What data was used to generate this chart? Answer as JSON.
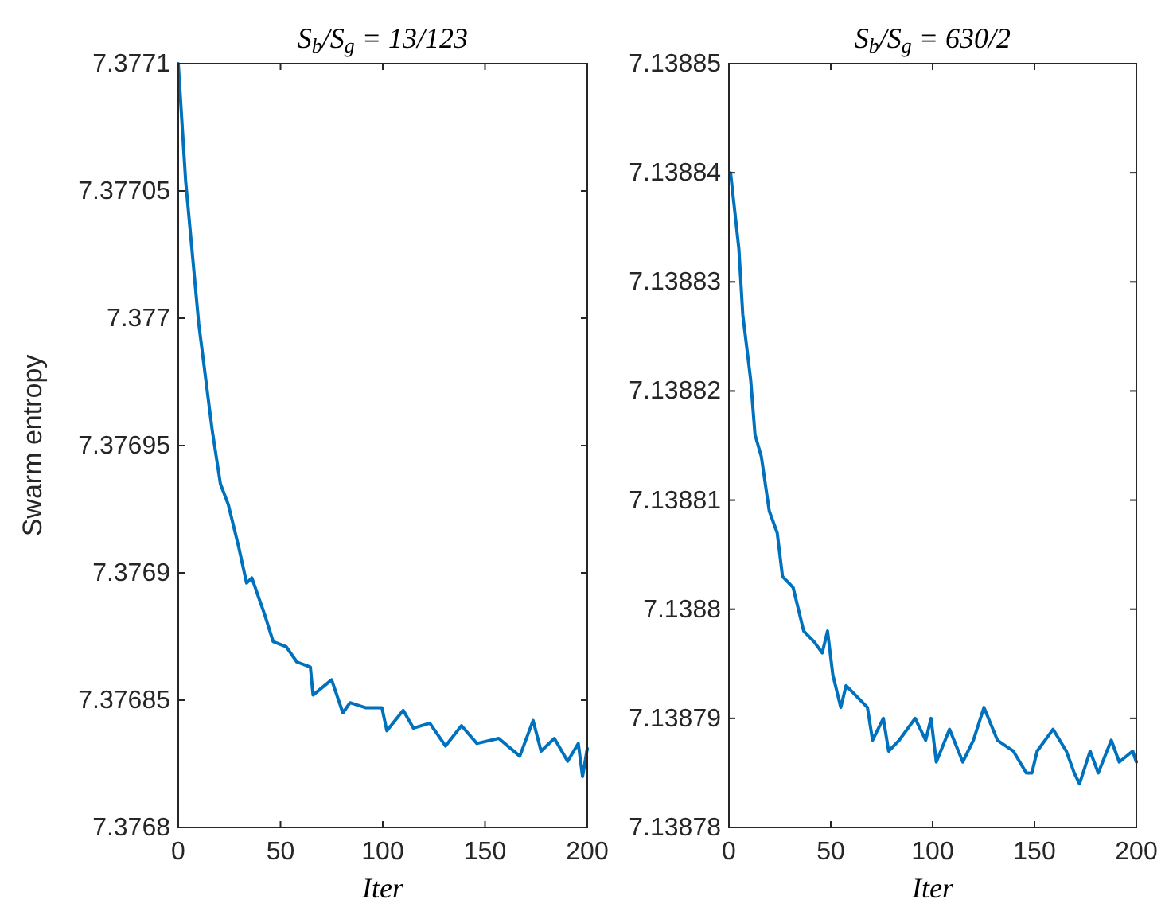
{
  "chart_data": [
    {
      "type": "line",
      "title": "S$_{b}$/S$_{g}$ = 13/123",
      "xlabel": "Iter",
      "ylabel": "Swarm entropy",
      "xlim": [
        0,
        200
      ],
      "xticks": [
        0,
        50,
        100,
        150,
        200
      ],
      "ylim": [
        7.3768,
        7.3771
      ],
      "yticks": [
        7.3768,
        7.37685,
        7.3769,
        7.37695,
        7.377,
        7.37705,
        7.3771
      ],
      "grid": false,
      "series": [
        {
          "color": "#0072bd",
          "x": [
            0,
            3.6,
            10,
            16.6,
            20.6,
            24.4,
            29.6,
            33.4,
            36,
            42.5,
            46.4,
            52.8,
            58,
            64.6,
            65.9,
            75,
            80.5,
            84,
            91.8,
            99.6,
            102,
            110,
            115,
            123,
            130.7,
            138.5,
            146,
            156.7,
            167,
            173.5,
            177.4,
            183.9,
            190.4,
            195.6,
            197.7,
            200
          ],
          "values": [
            7.3771,
            7.377054,
            7.376998,
            7.376956,
            7.376935,
            7.376927,
            7.37691,
            7.376896,
            7.376898,
            7.376883,
            7.376873,
            7.376871,
            7.376865,
            7.376863,
            7.376852,
            7.376858,
            7.376845,
            7.376849,
            7.376847,
            7.376847,
            7.376838,
            7.376846,
            7.376839,
            7.376841,
            7.376832,
            7.37684,
            7.376833,
            7.376835,
            7.376828,
            7.376842,
            7.37683,
            7.376835,
            7.376826,
            7.376833,
            7.37682,
            7.376831
          ]
        }
      ]
    },
    {
      "type": "line",
      "title": "S$_{b}$/S$_{g}$ = 630/2",
      "xlabel": "Iter",
      "xlim": [
        0,
        200
      ],
      "xticks": [
        0,
        50,
        100,
        150,
        200
      ],
      "ylim": [
        7.13878,
        7.13885
      ],
      "yticks": [
        7.13878,
        7.13879,
        7.1388,
        7.13881,
        7.13882,
        7.13883,
        7.13884,
        7.13885
      ],
      "grid": false,
      "series": [
        {
          "color": "#0072bd",
          "x": [
            0.8,
            4.9,
            6.8,
            10.7,
            12.8,
            15.9,
            19.8,
            23.7,
            26.3,
            31.5,
            36.7,
            41.9,
            45.8,
            48.4,
            51,
            54.9,
            57.5,
            68,
            70.5,
            75.8,
            78.4,
            83.6,
            91.4,
            96.6,
            99.2,
            101.8,
            108.3,
            114.8,
            120,
            125.2,
            131.8,
            139.6,
            146,
            148.7,
            151.3,
            159.1,
            165.6,
            169.5,
            172.1,
            177.3,
            181.3,
            187.7,
            191.6,
            198.2,
            200
          ],
          "values": [
            7.13884,
            7.138833,
            7.138827,
            7.138821,
            7.138816,
            7.138814,
            7.138809,
            7.138807,
            7.138803,
            7.138802,
            7.138798,
            7.138797,
            7.138796,
            7.138798,
            7.138794,
            7.138791,
            7.138793,
            7.138791,
            7.138788,
            7.13879,
            7.138787,
            7.138788,
            7.13879,
            7.138788,
            7.13879,
            7.138786,
            7.138789,
            7.138786,
            7.138788,
            7.138791,
            7.138788,
            7.138787,
            7.138785,
            7.138785,
            7.138787,
            7.138789,
            7.138787,
            7.138785,
            7.138784,
            7.138787,
            7.138785,
            7.138788,
            7.138786,
            7.138787,
            7.138786
          ]
        }
      ]
    }
  ]
}
